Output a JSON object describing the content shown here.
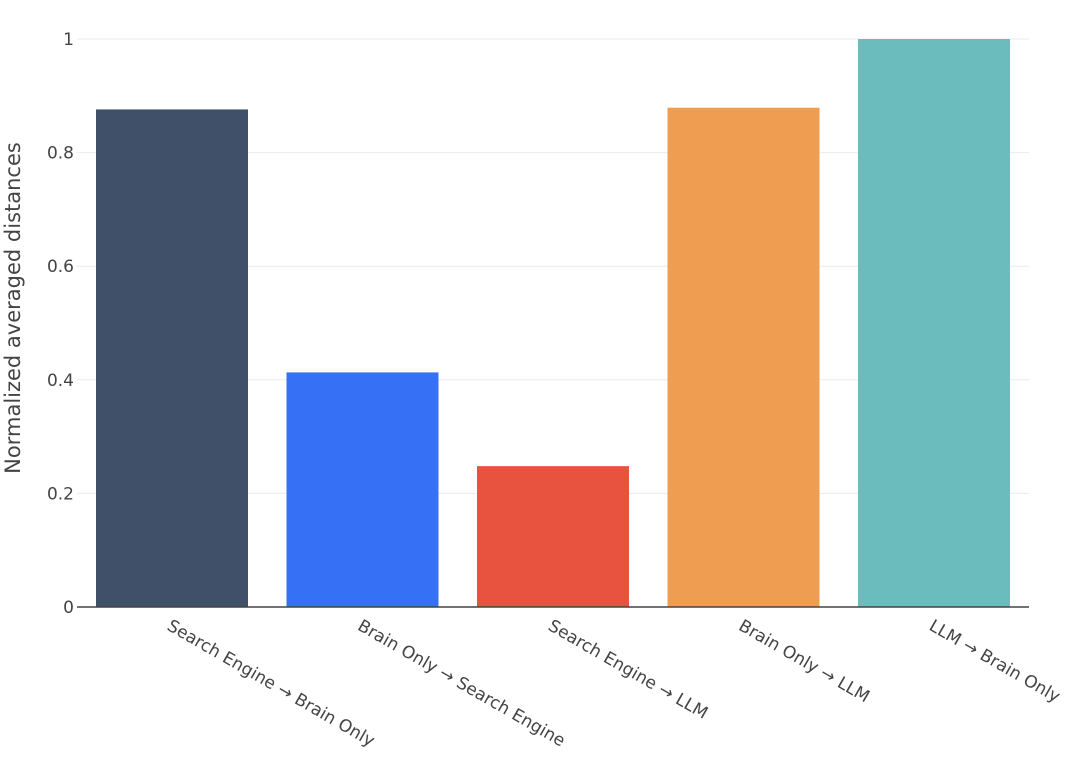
{
  "chart_data": {
    "type": "bar",
    "ylabel": "Normalized averaged distances",
    "xlabel": "",
    "ylim": [
      0,
      1
    ],
    "yticks": [
      0,
      0.2,
      0.4,
      0.6,
      0.8,
      1
    ],
    "ytick_labels": [
      "0",
      "0.2",
      "0.4",
      "0.6",
      "0.8",
      "1"
    ],
    "grid": true,
    "legend": "none",
    "categories": [
      "Search Engine → Brain Only",
      "Brain Only → Search Engine",
      "Search Engine → LLM",
      "Brain Only → LLM",
      "LLM → Brain Only"
    ],
    "values": [
      0.876,
      0.413,
      0.248,
      0.879,
      1.0
    ],
    "colors": [
      "#3f5068",
      "#3671f5",
      "#e8533f",
      "#ef9e51",
      "#6bbcbc"
    ]
  }
}
